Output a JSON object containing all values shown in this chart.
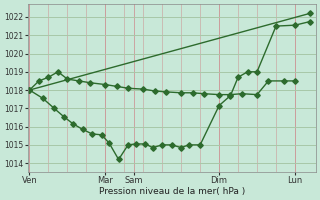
{
  "background_color": "#c8e8d8",
  "line_color": "#2d6b2d",
  "grid_color_h": "#a8c8a8",
  "grid_color_v": "#cc9999",
  "xlabel": "Pression niveau de la mer( hPa )",
  "ylim": [
    1013.5,
    1022.7
  ],
  "xlim": [
    -0.05,
    7.55
  ],
  "yticks": [
    1014,
    1015,
    1016,
    1017,
    1018,
    1019,
    1020,
    1021,
    1022
  ],
  "day_positions": [
    0,
    2.0,
    2.75,
    5.0,
    7.0
  ],
  "day_labels": [
    "Ven",
    "Mar",
    "Sam",
    "Dim",
    "Lun"
  ],
  "upper_line_x": [
    0.0,
    7.4
  ],
  "upper_line_y": [
    1018.0,
    1022.2
  ],
  "mid_line_x": [
    0.0,
    0.25,
    0.5,
    0.75,
    1.0,
    1.3,
    1.6,
    2.0,
    2.3,
    2.6,
    3.0,
    3.3,
    3.6,
    4.0,
    4.3,
    4.6,
    5.0,
    5.3,
    5.6,
    6.0,
    6.3,
    6.7,
    7.0
  ],
  "mid_line_y": [
    1018.0,
    1018.5,
    1018.7,
    1019.0,
    1018.6,
    1018.5,
    1018.4,
    1018.3,
    1018.2,
    1018.1,
    1018.05,
    1017.95,
    1017.9,
    1017.85,
    1017.85,
    1017.8,
    1017.75,
    1017.75,
    1017.8,
    1017.75,
    1018.5,
    1018.5,
    1018.5
  ],
  "low_line_x": [
    0.0,
    0.35,
    0.65,
    0.9,
    1.15,
    1.4,
    1.65,
    1.9,
    2.1,
    2.35,
    2.6,
    2.8,
    3.05,
    3.25,
    3.5,
    3.75,
    4.0,
    4.2,
    4.5,
    5.0,
    5.3,
    5.5,
    5.75,
    6.0,
    6.5,
    7.0,
    7.4
  ],
  "low_line_y": [
    1018.0,
    1017.55,
    1017.0,
    1016.55,
    1016.15,
    1015.85,
    1015.6,
    1015.55,
    1015.1,
    1014.2,
    1015.0,
    1015.05,
    1015.05,
    1014.85,
    1015.0,
    1015.0,
    1014.85,
    1015.0,
    1015.0,
    1017.15,
    1017.7,
    1018.7,
    1019.0,
    1019.0,
    1021.5,
    1021.55,
    1021.75
  ]
}
